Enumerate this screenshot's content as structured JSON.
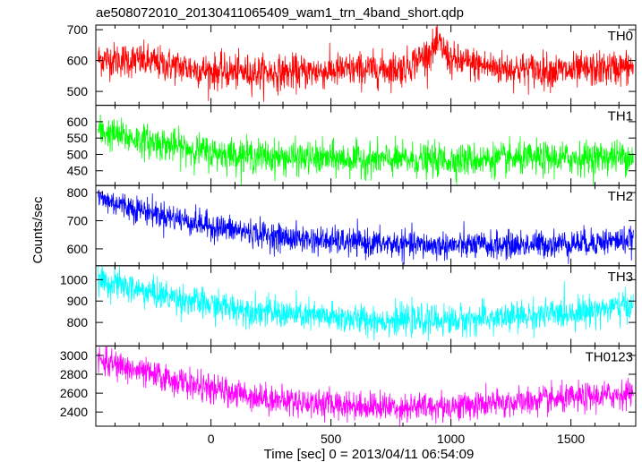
{
  "chart_data": {
    "type": "line",
    "title": "ae508072010_20130411065409_wam1_trn_4band_short.qdp",
    "xlabel": "Time [sec] 0 = 2013/04/11 06:54:09",
    "ylabel": "Counts/sec",
    "xlim": [
      -480,
      1770
    ],
    "xticks": [
      0,
      500,
      1000,
      1500
    ],
    "panels": [
      {
        "name": "TH0",
        "color": "#ff0000",
        "ylim": [
          455,
          715
        ],
        "yticks": [
          500,
          600,
          700
        ],
        "trend": {
          "x": [
            -470,
            -300,
            0,
            300,
            600,
            800,
            900,
            950,
            1000,
            1200,
            1500,
            1760
          ],
          "y": [
            605,
            600,
            565,
            560,
            570,
            575,
            620,
            655,
            600,
            575,
            565,
            580
          ]
        },
        "noise": 28
      },
      {
        "name": "TH1",
        "color": "#00ff00",
        "ylim": [
          405,
          650
        ],
        "yticks": [
          450,
          500,
          550,
          600
        ],
        "trend": {
          "x": [
            -470,
            -300,
            0,
            300,
            600,
            900,
            1200,
            1500,
            1760
          ],
          "y": [
            570,
            545,
            505,
            490,
            485,
            482,
            485,
            488,
            495
          ]
        },
        "noise": 25
      },
      {
        "name": "TH2",
        "color": "#0000ff",
        "ylim": [
          540,
          825
        ],
        "yticks": [
          600,
          700,
          800
        ],
        "trend": {
          "x": [
            -470,
            -300,
            0,
            300,
            600,
            900,
            1200,
            1500,
            1760
          ],
          "y": [
            780,
            740,
            680,
            640,
            622,
            612,
            612,
            620,
            632
          ]
        },
        "noise": 24
      },
      {
        "name": "TH3",
        "color": "#00ffff",
        "ylim": [
          690,
          1065
        ],
        "yticks": [
          800,
          900,
          1000
        ],
        "trend": {
          "x": [
            -470,
            -300,
            0,
            300,
            600,
            800,
            1000,
            1200,
            1500,
            1760
          ],
          "y": [
            1000,
            950,
            880,
            840,
            815,
            808,
            810,
            820,
            845,
            880
          ]
        },
        "noise": 35
      },
      {
        "name": "TH0123",
        "color": "#ff00ff",
        "ylim": [
          2250,
          3100
        ],
        "yticks": [
          2400,
          2600,
          2800,
          3000
        ],
        "trend": {
          "x": [
            -470,
            -300,
            0,
            300,
            600,
            800,
            1000,
            1200,
            1500,
            1760
          ],
          "y": [
            2950,
            2830,
            2640,
            2520,
            2470,
            2450,
            2460,
            2490,
            2540,
            2600
          ]
        },
        "noise": 75
      }
    ]
  }
}
